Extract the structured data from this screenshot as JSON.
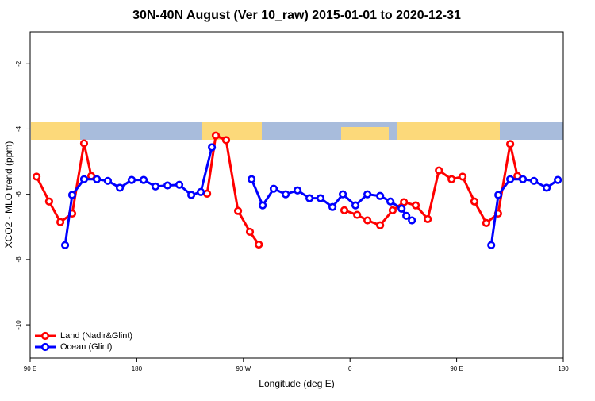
{
  "chart_data": {
    "type": "line",
    "title": "30N-40N August (Ver 10_raw)   2015-01-01 to 2020-12-31",
    "x_label": "Longitude (deg E)",
    "y_label": "XCO2 - MLO trend (ppm)",
    "xlim": [
      90,
      540
    ],
    "xticks": [
      {
        "value": 90,
        "label": "90 E"
      },
      {
        "value": 180,
        "label": "180"
      },
      {
        "value": 270,
        "label": "90 W"
      },
      {
        "value": 360,
        "label": "0"
      },
      {
        "value": 450,
        "label": "90 E"
      },
      {
        "value": 540,
        "label": "180"
      }
    ],
    "ylim": [
      -11.02,
      -1.02
    ],
    "yticks": [
      -2,
      -4,
      -6,
      -8,
      -10
    ],
    "legend": "bottom-left",
    "series": [
      {
        "name": "Land (Nadir&Glint)",
        "color": "#ff0000",
        "x": [
          95.4,
          106,
          115.5,
          125.5,
          135.5,
          141.6,
          190,
          239.4,
          246.7,
          255.4,
          265.5,
          275.5,
          283,
          320,
          355.2,
          366,
          374.7,
          385.4,
          396,
          405.5,
          415.5,
          425.6,
          435,
          445.7,
          455,
          465,
          475,
          485,
          495.2,
          501.3
        ],
        "values": [
          -5.46,
          -6.22,
          -6.85,
          -6.59,
          -4.44,
          -5.44,
          null,
          -5.98,
          -4.2,
          -4.34,
          -6.51,
          -7.15,
          -7.54,
          null,
          -6.49,
          -6.63,
          -6.8,
          -6.95,
          -6.49,
          -6.24,
          -6.34,
          -6.76,
          -5.27,
          -5.54,
          -5.46,
          -6.22,
          -6.88,
          -6.59,
          -4.46,
          -5.44
        ]
      },
      {
        "name": "Ocean (Glint)",
        "color": "#0000ff",
        "x": [
          119.5,
          125.5,
          135.5,
          146.3,
          155.6,
          165.7,
          175.7,
          185.8,
          195.8,
          205.9,
          215.9,
          226,
          234,
          243.4,
          260,
          276.9,
          286.3,
          295.6,
          305.7,
          315.7,
          325.8,
          335.1,
          345.2,
          353.9,
          364.6,
          374.7,
          385.4,
          394.1,
          403.5,
          407.5,
          412.2,
          445,
          479.2,
          485.2,
          495.2,
          505.9,
          515.3,
          526,
          535.4
        ],
        "values": [
          -7.56,
          -6.02,
          -5.54,
          -5.54,
          -5.59,
          -5.8,
          -5.56,
          -5.56,
          -5.76,
          -5.73,
          -5.71,
          -6.02,
          -5.93,
          -4.56,
          null,
          -5.54,
          -6.34,
          -5.83,
          -6.0,
          -5.88,
          -6.12,
          -6.12,
          -6.39,
          -6.0,
          -6.34,
          -6.0,
          -6.05,
          -6.22,
          -6.44,
          -6.66,
          -6.8,
          null,
          -7.56,
          -6.02,
          -5.54,
          -5.54,
          -5.59,
          -5.8,
          -5.56
        ]
      }
    ]
  }
}
